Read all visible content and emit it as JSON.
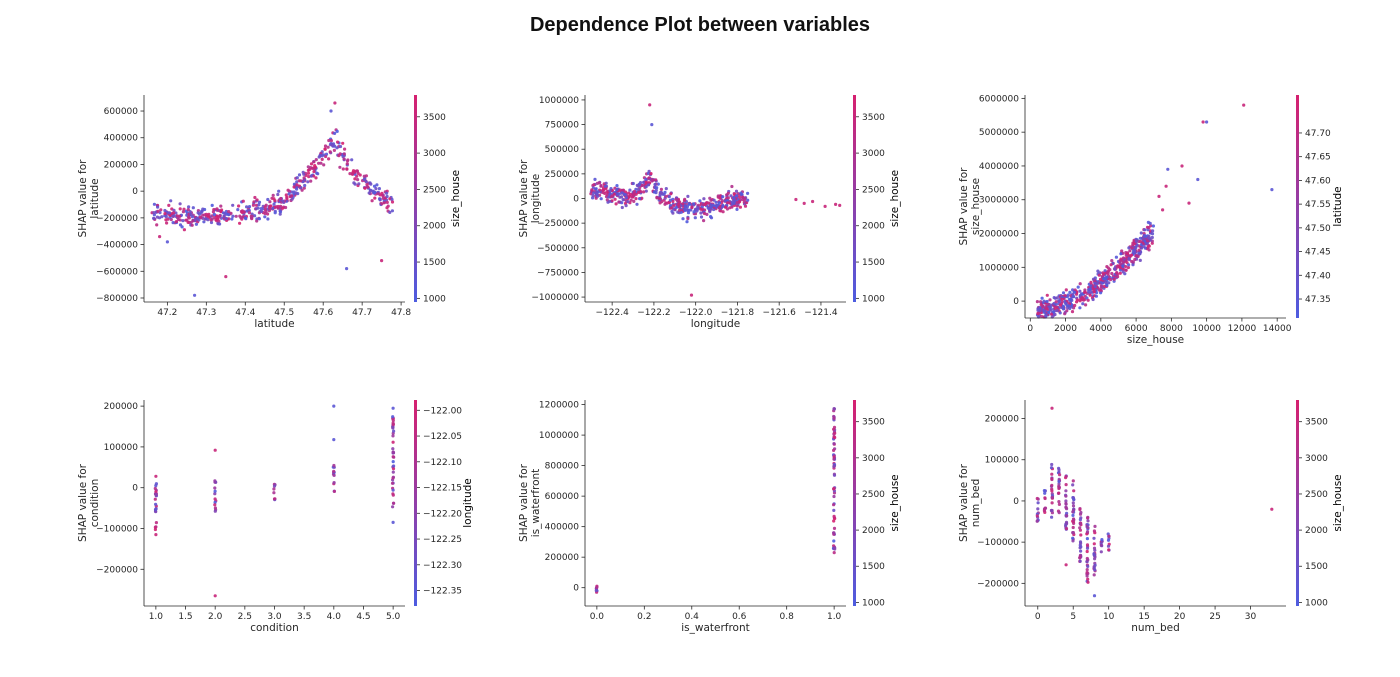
{
  "title": "Dependence Plot between variables",
  "colors": {
    "low": "#4d5ce0",
    "high": "#d6206f",
    "axis": "#262626"
  },
  "chart_data": [
    {
      "type": "scatter",
      "feature": "latitude",
      "xlabel": "latitude",
      "ylabel": [
        "SHAP value for",
        "latitude"
      ],
      "xlim": [
        47.14,
        47.81
      ],
      "ylim": [
        -830000,
        720000
      ],
      "xticks": [
        47.2,
        47.3,
        47.4,
        47.5,
        47.6,
        47.7,
        47.8
      ],
      "yticks": [
        -800000,
        -600000,
        -400000,
        -200000,
        0,
        200000,
        400000,
        600000
      ],
      "colorbar": {
        "label": "size_house",
        "range": [
          950,
          3800
        ],
        "ticks": [
          1000,
          1500,
          2000,
          2500,
          3000,
          3500
        ]
      },
      "trend": [
        [
          47.16,
          -150000
        ],
        [
          47.2,
          -170000
        ],
        [
          47.25,
          -190000
        ],
        [
          47.3,
          -195000
        ],
        [
          47.35,
          -180000
        ],
        [
          47.4,
          -160000
        ],
        [
          47.45,
          -130000
        ],
        [
          47.5,
          -80000
        ],
        [
          47.55,
          80000
        ],
        [
          47.6,
          250000
        ],
        [
          47.63,
          380000
        ],
        [
          47.66,
          200000
        ],
        [
          47.7,
          80000
        ],
        [
          47.75,
          -50000
        ],
        [
          47.78,
          -120000
        ]
      ],
      "outliers": [
        [
          47.27,
          -780000
        ],
        [
          47.35,
          -640000
        ],
        [
          47.66,
          -580000
        ],
        [
          47.63,
          660000
        ],
        [
          47.62,
          600000
        ],
        [
          47.75,
          -520000
        ],
        [
          47.2,
          -380000
        ],
        [
          47.18,
          -340000
        ]
      ]
    },
    {
      "type": "scatter",
      "feature": "longitude",
      "xlabel": "longitude",
      "ylabel": [
        "SHAP value for",
        "longitude"
      ],
      "xlim": [
        -122.53,
        -121.28
      ],
      "ylim": [
        -1050000,
        1050000
      ],
      "xticks": [
        -122.4,
        -122.2,
        -122.0,
        -121.8,
        -121.6,
        -121.4
      ],
      "yticks": [
        -1000000,
        -750000,
        -500000,
        -250000,
        0,
        250000,
        500000,
        750000,
        1000000
      ],
      "colorbar": {
        "label": "size_house",
        "range": [
          950,
          3800
        ],
        "ticks": [
          1000,
          1500,
          2000,
          2500,
          3000,
          3500
        ]
      },
      "trend": [
        [
          -122.5,
          100000
        ],
        [
          -122.42,
          60000
        ],
        [
          -122.35,
          20000
        ],
        [
          -122.3,
          40000
        ],
        [
          -122.25,
          100000
        ],
        [
          -122.22,
          250000
        ],
        [
          -122.18,
          40000
        ],
        [
          -122.12,
          -40000
        ],
        [
          -122.05,
          -80000
        ],
        [
          -122.0,
          -100000
        ],
        [
          -121.95,
          -90000
        ],
        [
          -121.88,
          -50000
        ],
        [
          -121.82,
          -20000
        ],
        [
          -121.75,
          10000
        ]
      ],
      "outliers": [
        [
          -122.22,
          950000
        ],
        [
          -122.21,
          750000
        ],
        [
          -122.02,
          -980000
        ],
        [
          -121.48,
          -50000
        ],
        [
          -121.44,
          -30000
        ],
        [
          -121.38,
          -80000
        ],
        [
          -121.33,
          -60000
        ],
        [
          -121.31,
          -70000
        ],
        [
          -121.52,
          -10000
        ]
      ]
    },
    {
      "type": "scatter",
      "feature": "size_house",
      "xlabel": "size_house",
      "ylabel": [
        "SHAP value for",
        "size_house"
      ],
      "xlim": [
        -300,
        14500
      ],
      "ylim": [
        -500000,
        6100000
      ],
      "xticks": [
        0,
        2000,
        4000,
        6000,
        8000,
        10000,
        12000,
        14000
      ],
      "yticks": [
        0,
        1000000,
        2000000,
        3000000,
        4000000,
        5000000,
        6000000
      ],
      "colorbar": {
        "label": "latitude",
        "range": [
          47.31,
          47.78
        ],
        "ticks": [
          47.35,
          47.4,
          47.45,
          47.5,
          47.55,
          47.6,
          47.65,
          47.7
        ],
        "labels": [
          "47.35",
          "47.40",
          "47.45",
          "47.50",
          "47.55",
          "47.60",
          "47.65",
          "47.70"
        ]
      },
      "trend": [
        [
          400,
          -250000
        ],
        [
          1000,
          -220000
        ],
        [
          1500,
          -150000
        ],
        [
          2000,
          -50000
        ],
        [
          2500,
          80000
        ],
        [
          3000,
          200000
        ],
        [
          3500,
          350000
        ],
        [
          4000,
          550000
        ],
        [
          4500,
          800000
        ],
        [
          5000,
          1000000
        ],
        [
          5500,
          1300000
        ],
        [
          6000,
          1550000
        ],
        [
          6500,
          1800000
        ],
        [
          7000,
          2000000
        ]
      ],
      "outliers": [
        [
          7500,
          2700000
        ],
        [
          7700,
          3400000
        ],
        [
          7800,
          3900000
        ],
        [
          9000,
          2900000
        ],
        [
          9500,
          3600000
        ],
        [
          9800,
          5300000
        ],
        [
          10000,
          5300000
        ],
        [
          12100,
          5800000
        ],
        [
          13700,
          3300000
        ],
        [
          7300,
          3100000
        ],
        [
          8600,
          4000000
        ],
        [
          6800,
          2300000
        ]
      ]
    },
    {
      "type": "scatter",
      "feature": "condition",
      "xlabel": "condition",
      "ylabel": [
        "SHAP value for",
        "condition"
      ],
      "xlim": [
        0.8,
        5.2
      ],
      "ylim": [
        -290000,
        215000
      ],
      "xticks": [
        1.0,
        1.5,
        2.0,
        2.5,
        3.0,
        3.5,
        4.0,
        4.5,
        5.0
      ],
      "yticks": [
        -200000,
        -100000,
        0,
        100000,
        200000
      ],
      "colorbar": {
        "label": "longitude",
        "range": [
          -122.38,
          -121.98
        ],
        "ticks": [
          -122.35,
          -122.3,
          -122.25,
          -122.2,
          -122.15,
          -122.1,
          -122.05,
          -122.0
        ],
        "labels": [
          "−122.35",
          "−122.30",
          "−122.25",
          "−122.20",
          "−122.15",
          "−122.10",
          "−122.05",
          "−122.00"
        ]
      },
      "columns": [
        {
          "x": 1,
          "from": -110000,
          "to": 20000
        },
        {
          "x": 2,
          "from": -60000,
          "to": 20000
        },
        {
          "x": 3,
          "from": -30000,
          "to": 15000
        },
        {
          "x": 4,
          "from": -10000,
          "to": 60000
        },
        {
          "x": 5,
          "from": -50000,
          "to": 180000
        }
      ],
      "outliers": [
        [
          1,
          -115000
        ],
        [
          1,
          28000
        ],
        [
          2,
          -265000
        ],
        [
          2,
          92000
        ],
        [
          4,
          200000
        ],
        [
          4,
          118000
        ],
        [
          5,
          195000
        ],
        [
          5,
          -85000
        ]
      ]
    },
    {
      "type": "scatter",
      "feature": "is_waterfront",
      "xlabel": "is_waterfront",
      "ylabel": [
        "SHAP value for",
        "is_waterfront"
      ],
      "xlim": [
        -0.05,
        1.05
      ],
      "ylim": [
        -120000,
        1230000
      ],
      "xticks": [
        0.0,
        0.2,
        0.4,
        0.6,
        0.8,
        1.0
      ],
      "yticks": [
        0,
        200000,
        400000,
        600000,
        800000,
        1000000,
        1200000
      ],
      "colorbar": {
        "label": "size_house",
        "range": [
          950,
          3800
        ],
        "ticks": [
          1000,
          1500,
          2000,
          2500,
          3000,
          3500
        ]
      },
      "columns": [
        {
          "x": 0,
          "from": -30000,
          "to": 10000
        },
        {
          "x": 1,
          "from": 230000,
          "to": 1180000
        }
      ],
      "outliers": []
    },
    {
      "type": "scatter",
      "feature": "num_bed",
      "xlabel": "num_bed",
      "ylabel": [
        "SHAP value for",
        "num_bed"
      ],
      "xlim": [
        -1.8,
        35
      ],
      "ylim": [
        -255000,
        245000
      ],
      "xticks": [
        0,
        5,
        10,
        15,
        20,
        25,
        30
      ],
      "yticks": [
        -200000,
        -100000,
        0,
        100000,
        200000
      ],
      "colorbar": {
        "label": "size_house",
        "range": [
          950,
          3800
        ],
        "ticks": [
          1000,
          1500,
          2000,
          2500,
          3000,
          3500
        ]
      },
      "columns": [
        {
          "x": 0,
          "from": -50000,
          "to": 10000
        },
        {
          "x": 1,
          "from": -30000,
          "to": 30000
        },
        {
          "x": 2,
          "from": -40000,
          "to": 90000
        },
        {
          "x": 3,
          "from": -30000,
          "to": 80000
        },
        {
          "x": 4,
          "from": -70000,
          "to": 70000
        },
        {
          "x": 5,
          "from": -100000,
          "to": 50000
        },
        {
          "x": 6,
          "from": -150000,
          "to": 0
        },
        {
          "x": 7,
          "from": -200000,
          "to": -30000
        },
        {
          "x": 8,
          "from": -180000,
          "to": -60000
        },
        {
          "x": 9,
          "from": -130000,
          "to": -90000
        },
        {
          "x": 10,
          "from": -120000,
          "to": -70000
        }
      ],
      "outliers": [
        [
          2,
          225000
        ],
        [
          33,
          -20000
        ],
        [
          8,
          -230000
        ],
        [
          4,
          -155000
        ]
      ]
    }
  ]
}
